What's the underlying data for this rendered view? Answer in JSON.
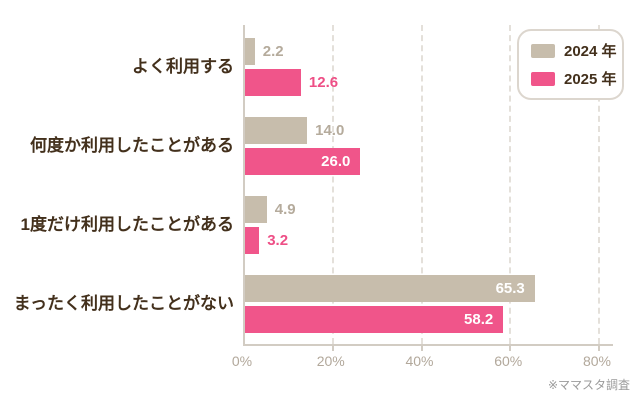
{
  "chart_data": {
    "type": "bar",
    "orientation": "horizontal",
    "title": "",
    "categories": [
      "よく利用する",
      "何度か利用したことがある",
      "1度だけ利用したことがある",
      "まったく利用したことがない"
    ],
    "series": [
      {
        "name": "2024 年",
        "values": [
          2.2,
          14.0,
          4.9,
          65.3
        ],
        "color": "#c7bdac",
        "value_label_color": "#b5ab9c"
      },
      {
        "name": "2025 年",
        "values": [
          12.6,
          26.0,
          3.2,
          58.2
        ],
        "color": "#f0558a",
        "value_label_color": "#ee4f86"
      }
    ],
    "x_ticks": [
      {
        "value": 0,
        "label": "0%"
      },
      {
        "value": 20,
        "label": "20%"
      },
      {
        "value": 40,
        "label": "40%"
      },
      {
        "value": 60,
        "label": "60%"
      },
      {
        "value": 80,
        "label": "80%"
      }
    ],
    "xlim": [
      0,
      80
    ],
    "grid": "vertical-dashed",
    "legend_position": "top-right",
    "value_label_decimals": 1,
    "value_inside_threshold": 20,
    "footnote": "※ママスタ調査"
  }
}
